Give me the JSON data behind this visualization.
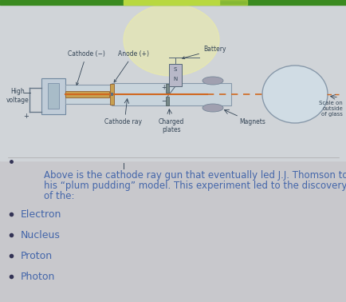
{
  "background_color": "#c8c8cc",
  "text_area_color": "#e8e8ec",
  "top_bar_color": "#3a8a20",
  "top_bar_highlight_color": "#b8d840",
  "top_glow_color": "#f0f0a0",
  "description_text_line1": "Above is the cathode ray gun that eventually led J.J. Thomson to",
  "description_text_line2": "his “plum pudding” model. This experiment led to the discovery",
  "description_text_line3": "of the:",
  "bullet_items": [
    "Electron",
    "Nucleus",
    "Proton",
    "Photon"
  ],
  "text_color": "#4466aa",
  "bullet_color": "#333355",
  "diagram_bg": "#d8dce0",
  "tube_fill": "#c8d4dc",
  "tube_edge": "#8899aa",
  "electrode_fill": "#c8a050",
  "electrode_edge": "#906030",
  "beam_color": "#d06820",
  "wire_color": "#667788",
  "magnet_fill": "#a0a0b0",
  "bulb_fill": "#d0dce4",
  "coil_fill": "#b8b8c8",
  "label_color": "#334455",
  "font_size_main": 8.5,
  "font_size_labels": 5.5,
  "font_size_bullets": 9.0,
  "diagram_labels": {
    "cathode_minus": "Cathode (−)",
    "anode_plus": "Anode (+)",
    "battery": "Battery",
    "high_voltage": "High\nvoltage",
    "cathode_ray": "Cathode ray",
    "charged_plates": "Charged\nplates",
    "magnets": "Magnets",
    "scale": "Scale on\noutside\nof glass"
  }
}
